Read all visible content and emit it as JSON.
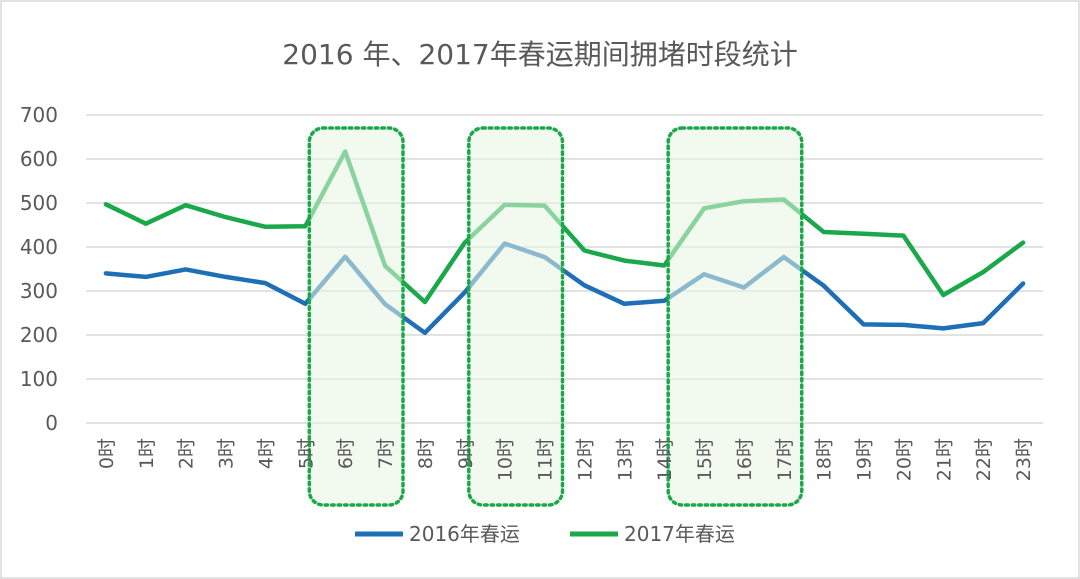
{
  "chart_data": {
    "type": "line",
    "title": "2016 年、2017年春运期间拥堵时段统计",
    "categories": [
      "0时",
      "1时",
      "2时",
      "3时",
      "4时",
      "5时",
      "6时",
      "7时",
      "8时",
      "9时",
      "10时",
      "11时",
      "12时",
      "13时",
      "14时",
      "15时",
      "16时",
      "17时",
      "18时",
      "19时",
      "20时",
      "21时",
      "22时",
      "23时"
    ],
    "ylim": [
      0,
      700
    ],
    "yticks": [
      0,
      100,
      200,
      300,
      400,
      500,
      600,
      700
    ],
    "grid": true,
    "legend_position": "bottom",
    "series": [
      {
        "name": "2016年春运",
        "color": "#1f6fb6",
        "values": [
          340,
          332,
          349,
          332,
          318,
          271,
          378,
          270,
          205,
          297,
          408,
          377,
          313,
          271,
          278,
          338,
          308,
          377,
          312,
          224,
          223,
          215,
          227,
          317
        ]
      },
      {
        "name": "2017年春运",
        "color": "#1aa84a",
        "values": [
          497,
          453,
          495,
          468,
          446,
          447,
          617,
          357,
          275,
          410,
          496,
          494,
          392,
          369,
          358,
          488,
          504,
          508,
          434,
          430,
          426,
          291,
          343,
          410
        ]
      }
    ],
    "highlight_ranges": [
      {
        "from": "6时",
        "to": "7时"
      },
      {
        "from": "10时",
        "to": "11时"
      },
      {
        "from": "15时",
        "to": "17时"
      }
    ],
    "highlight_color": "#1aa84a"
  }
}
